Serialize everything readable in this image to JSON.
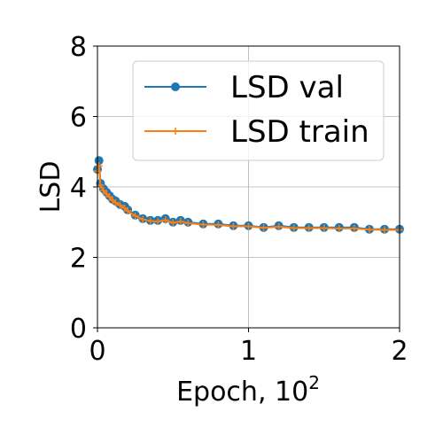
{
  "chart_data": {
    "type": "line",
    "xlabel": "Epoch, 10",
    "xlabel_sup": "2",
    "ylabel": "LSD",
    "xlim": [
      0,
      2
    ],
    "ylim": [
      0,
      8
    ],
    "xticks": [
      "0",
      "1",
      "2"
    ],
    "yticks": [
      "0",
      "2",
      "4",
      "6",
      "8"
    ],
    "grid": true,
    "legend_position": "top-right",
    "series": [
      {
        "name": "LSD val",
        "color": "#1f77b4",
        "marker": "circle",
        "x": [
          0.0,
          0.01,
          0.02,
          0.04,
          0.06,
          0.08,
          0.1,
          0.12,
          0.15,
          0.18,
          0.2,
          0.25,
          0.3,
          0.35,
          0.4,
          0.45,
          0.5,
          0.55,
          0.6,
          0.7,
          0.8,
          0.9,
          1.0,
          1.1,
          1.2,
          1.3,
          1.4,
          1.5,
          1.6,
          1.7,
          1.8,
          1.9,
          2.0
        ],
        "y": [
          4.5,
          4.75,
          4.1,
          3.95,
          3.85,
          3.75,
          3.65,
          3.6,
          3.5,
          3.45,
          3.35,
          3.2,
          3.1,
          3.05,
          3.05,
          3.1,
          3.0,
          3.05,
          3.0,
          2.95,
          2.95,
          2.9,
          2.9,
          2.85,
          2.9,
          2.85,
          2.85,
          2.85,
          2.85,
          2.85,
          2.8,
          2.8,
          2.8
        ]
      },
      {
        "name": "LSD train",
        "color": "#ff7f0e",
        "marker": "plus",
        "x": [
          0.0,
          0.01,
          0.02,
          0.04,
          0.06,
          0.08,
          0.1,
          0.12,
          0.15,
          0.18,
          0.2,
          0.25,
          0.3,
          0.35,
          0.4,
          0.45,
          0.5,
          0.55,
          0.6,
          0.7,
          0.8,
          0.9,
          1.0,
          1.1,
          1.2,
          1.3,
          1.4,
          1.5,
          1.6,
          1.7,
          1.8,
          1.9,
          2.0
        ],
        "y": [
          4.45,
          4.6,
          4.05,
          3.9,
          3.8,
          3.72,
          3.62,
          3.55,
          3.48,
          3.4,
          3.32,
          3.18,
          3.08,
          3.03,
          3.02,
          3.06,
          2.98,
          3.02,
          2.97,
          2.93,
          2.92,
          2.88,
          2.88,
          2.84,
          2.87,
          2.83,
          2.83,
          2.83,
          2.82,
          2.82,
          2.79,
          2.78,
          2.78
        ]
      }
    ]
  }
}
